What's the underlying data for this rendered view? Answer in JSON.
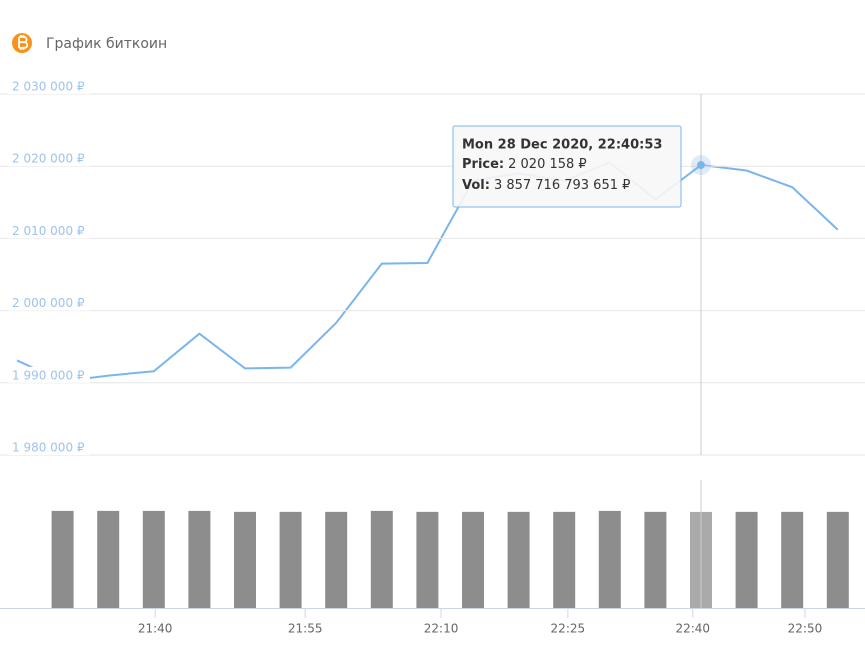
{
  "chart_data": {
    "type": "stock",
    "title": "График биткоин",
    "categories": [
      null,
      null,
      null,
      null,
      null,
      null,
      null,
      null,
      null,
      null,
      null,
      null,
      null,
      null,
      null,
      null,
      null,
      null,
      null
    ],
    "series": [
      {
        "name": "Price:",
        "color": "#7cb5ec",
        "values": [
          1993100,
          1990200,
          1991000,
          1991600,
          1996800,
          1992000,
          1992100,
          1998300,
          2006500,
          2006600,
          2018000,
          2019000,
          2018000,
          2020500,
          2015400,
          2020158,
          2019400,
          2017100,
          2011200
        ],
        "value_labels": [
          null,
          null,
          null,
          null,
          null,
          null,
          null,
          null,
          null,
          null,
          null,
          null,
          null,
          null,
          null,
          "2 020 158 ₽",
          null,
          null,
          null
        ]
      },
      {
        "name": "Vol:",
        "color": "#8d8d8d",
        "axis": "y2",
        "values": [
          null,
          3900000000000,
          3900000000000,
          3900000000000,
          3900000000000,
          3860000000000,
          3860000000000,
          3860000000000,
          3900000000000,
          3860000000000,
          3860000000000,
          3860000000000,
          3860000000000,
          3900000000000,
          3860000000000,
          3857716793651,
          3860000000000,
          3860000000000,
          3860000000000
        ],
        "value_labels": [
          null,
          null,
          null,
          null,
          null,
          null,
          null,
          null,
          null,
          null,
          null,
          null,
          null,
          null,
          null,
          "3 857 716 793 651 ₽",
          null,
          null,
          null
        ]
      }
    ],
    "tooltip_title": "Mon 28 Dec 2020, 22:40:53",
    "ylim": [
      1980000,
      2030000
    ],
    "yticks": [
      {
        "value": 1980000,
        "label": "1 980 000 ₽"
      },
      {
        "value": 1990000,
        "label": "1 990 000 ₽"
      },
      {
        "value": 2000000,
        "label": "2 000 000 ₽"
      },
      {
        "value": 2010000,
        "label": "2 010 000 ₽"
      },
      {
        "value": 2020000,
        "label": "2 020 000 ₽"
      },
      {
        "value": 2030000,
        "label": "2 030 000 ₽"
      }
    ],
    "y2lim": [
      0,
      5140000000000
    ],
    "xticks": [
      {
        "value": 3.03,
        "label": "21:40"
      },
      {
        "value": 6.32,
        "label": "21:55"
      },
      {
        "value": 9.3,
        "label": "22:10"
      },
      {
        "value": 12.08,
        "label": "22:25"
      },
      {
        "value": 14.82,
        "label": "22:40"
      },
      {
        "value": 17.28,
        "label": "22:50"
      }
    ],
    "grid": true
  }
}
